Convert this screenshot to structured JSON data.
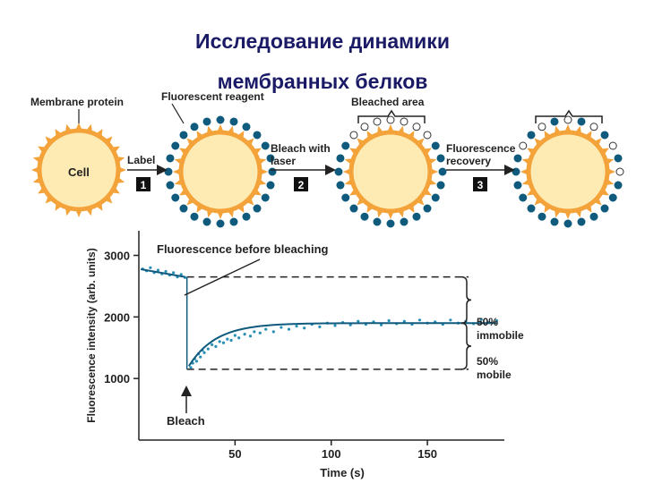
{
  "title": {
    "line1": "Исследование динамики",
    "line2": "мембранных белков"
  },
  "diagram": {
    "labels": {
      "membrane_protein": "Membrane protein",
      "fluorescent_reagent": "Fluorescent reagent",
      "bleached_area": "Bleached area",
      "cell": "Cell",
      "label_step": "Label",
      "bleach_step_line1": "Bleach with",
      "bleach_step_line2": "laser",
      "recovery_step_line1": "Fluorescence",
      "recovery_step_line2": "recovery"
    },
    "steps": [
      "1",
      "2",
      "3"
    ],
    "colors": {
      "cell_fill": "#fdebb3",
      "protein": "#f4a23a",
      "label_dot": "#0f5a7d",
      "arrow": "#222222",
      "step_box": "#111111"
    }
  },
  "chart_data": {
    "type": "scatter",
    "xlabel": "Time (s)",
    "ylabel": "Fluorescence intensity (arb. units)",
    "xticks": [
      50,
      100,
      150
    ],
    "yticks": [
      1000,
      2000,
      3000
    ],
    "xlim": [
      0,
      190
    ],
    "ylim": [
      0,
      3400
    ],
    "pre_bleach_level": 2650,
    "bleach_time": 25,
    "bleach_min": 1150,
    "plateau": 1900,
    "annotations": {
      "before": "Fluorescence before bleaching",
      "bleach": "Bleach",
      "immobile_pct": "50%",
      "immobile_word": "immobile",
      "mobile_pct": "50%",
      "mobile_word": "mobile"
    },
    "series": [
      {
        "points": [
          [
            2,
            2780
          ],
          [
            4,
            2750
          ],
          [
            6,
            2800
          ],
          [
            8,
            2720
          ],
          [
            10,
            2760
          ],
          [
            12,
            2700
          ],
          [
            14,
            2740
          ],
          [
            16,
            2680
          ],
          [
            18,
            2720
          ],
          [
            20,
            2650
          ],
          [
            22,
            2690
          ],
          [
            24,
            2640
          ],
          [
            27,
            1180
          ],
          [
            28,
            1250
          ],
          [
            29,
            1320
          ],
          [
            30,
            1280
          ],
          [
            31,
            1400
          ],
          [
            32,
            1350
          ],
          [
            33,
            1460
          ],
          [
            34,
            1420
          ],
          [
            36,
            1480
          ],
          [
            38,
            1550
          ],
          [
            40,
            1520
          ],
          [
            42,
            1600
          ],
          [
            44,
            1580
          ],
          [
            46,
            1640
          ],
          [
            48,
            1620
          ],
          [
            50,
            1700
          ],
          [
            52,
            1660
          ],
          [
            55,
            1720
          ],
          [
            58,
            1690
          ],
          [
            60,
            1760
          ],
          [
            63,
            1740
          ],
          [
            66,
            1800
          ],
          [
            70,
            1760
          ],
          [
            74,
            1830
          ],
          [
            78,
            1800
          ],
          [
            82,
            1850
          ],
          [
            86,
            1820
          ],
          [
            90,
            1880
          ],
          [
            94,
            1840
          ],
          [
            98,
            1900
          ],
          [
            102,
            1860
          ],
          [
            106,
            1910
          ],
          [
            110,
            1870
          ],
          [
            114,
            1930
          ],
          [
            118,
            1880
          ],
          [
            122,
            1920
          ],
          [
            126,
            1870
          ],
          [
            130,
            1940
          ],
          [
            134,
            1890
          ],
          [
            138,
            1930
          ],
          [
            142,
            1880
          ],
          [
            146,
            1950
          ],
          [
            150,
            1900
          ],
          [
            154,
            1920
          ],
          [
            158,
            1880
          ],
          [
            162,
            1950
          ],
          [
            166,
            1900
          ],
          [
            170,
            1930
          ],
          [
            174,
            1890
          ],
          [
            178,
            1960
          ],
          [
            182,
            1910
          ],
          [
            186,
            1940
          ]
        ]
      }
    ]
  }
}
